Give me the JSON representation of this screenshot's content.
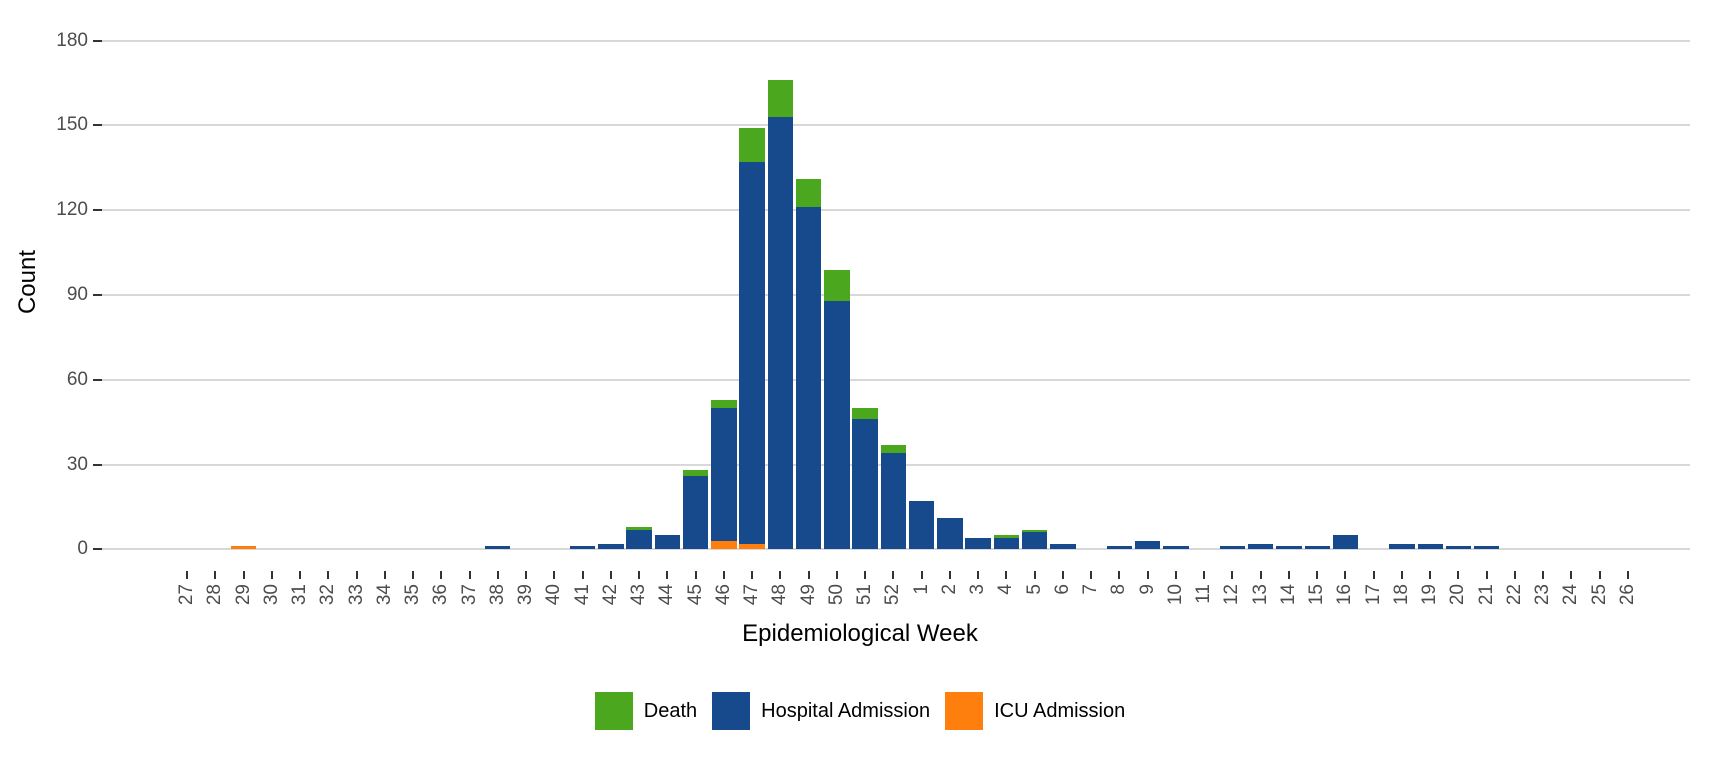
{
  "chart_data": {
    "type": "bar",
    "stacked": true,
    "xlabel": "Epidemiological Week",
    "ylabel": "Count",
    "x_categories": [
      "27",
      "28",
      "29",
      "30",
      "31",
      "32",
      "33",
      "34",
      "35",
      "36",
      "37",
      "38",
      "39",
      "40",
      "41",
      "42",
      "43",
      "44",
      "45",
      "46",
      "47",
      "48",
      "49",
      "50",
      "51",
      "52",
      "1",
      "2",
      "3",
      "4",
      "5",
      "6",
      "7",
      "8",
      "9",
      "10",
      "11",
      "12",
      "13",
      "14",
      "15",
      "16",
      "17",
      "18",
      "19",
      "20",
      "21",
      "22",
      "23",
      "24",
      "25",
      "26"
    ],
    "series": [
      {
        "name": "Death",
        "color": "#4BA81E",
        "values": [
          0,
          0,
          0,
          0,
          0,
          0,
          0,
          0,
          0,
          0,
          0,
          0,
          0,
          0,
          0,
          0,
          1,
          0,
          2,
          3,
          12,
          13,
          10,
          11,
          4,
          3,
          0,
          0,
          0,
          1,
          1,
          0,
          0,
          0,
          0,
          0,
          0,
          0,
          0,
          0,
          0,
          0,
          0,
          0,
          0,
          0,
          0,
          0,
          0,
          0,
          0,
          0
        ]
      },
      {
        "name": "Hospital Admission",
        "color": "#174A8C",
        "values": [
          0,
          0,
          0,
          0,
          0,
          0,
          0,
          0,
          0,
          0,
          0,
          1,
          0,
          0,
          1,
          2,
          7,
          5,
          26,
          47,
          135,
          153,
          121,
          88,
          46,
          34,
          17,
          11,
          4,
          4,
          6,
          2,
          0,
          1,
          3,
          1,
          0,
          1,
          2,
          1,
          1,
          5,
          0,
          2,
          2,
          1,
          1,
          0,
          0,
          0,
          0,
          0
        ]
      },
      {
        "name": "ICU Admission",
        "color": "#FF7F0E",
        "values": [
          0,
          0,
          1,
          0,
          0,
          0,
          0,
          0,
          0,
          0,
          0,
          0,
          0,
          0,
          0,
          0,
          0,
          0,
          0,
          3,
          2,
          0,
          0,
          0,
          0,
          0,
          0,
          0,
          0,
          0,
          0,
          0,
          0,
          0,
          0,
          0,
          0,
          0,
          0,
          0,
          0,
          0,
          0,
          0,
          0,
          0,
          0,
          0,
          0,
          0,
          0,
          0
        ]
      }
    ],
    "stack_order_bottom_to_top": [
      "ICU Admission",
      "Hospital Admission",
      "Death"
    ],
    "y_ticks": [
      "0",
      "30",
      "60",
      "90",
      "120",
      "150",
      "180"
    ],
    "ylim": [
      0,
      189
    ],
    "grid": "horizontal",
    "legend_position": "bottom",
    "legend_order": [
      "Death",
      "Hospital Admission",
      "ICU Admission"
    ],
    "colors": {
      "grid": "#D8D8D8",
      "tick_mark": "#333333",
      "tick_label": "#4D4D4D",
      "axis_title": "#000000",
      "background": "#FFFFFF"
    }
  }
}
